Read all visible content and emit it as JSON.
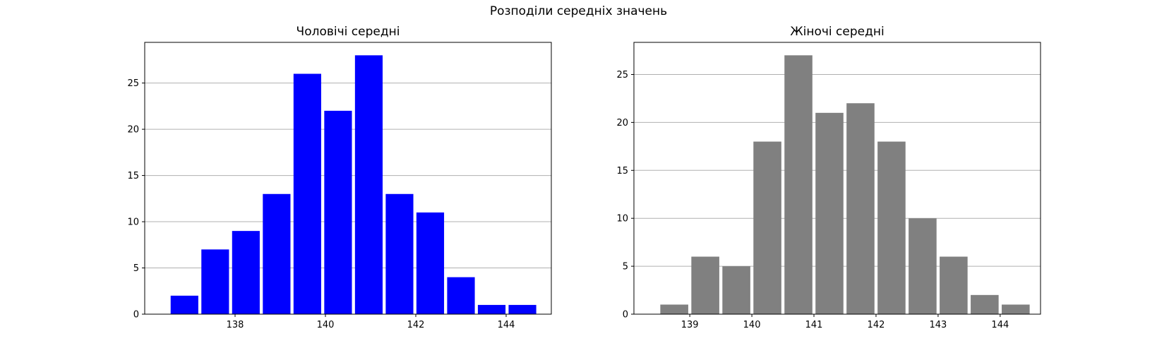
{
  "figure": {
    "title": "Розподіли середніх значень"
  },
  "chart_data": [
    {
      "type": "bar",
      "title": "Чоловічі середні",
      "color": "#0000ff",
      "bin_width": 0.68,
      "bin_centers": [
        136.88,
        137.56,
        138.24,
        138.92,
        139.6,
        140.28,
        140.96,
        141.64,
        142.32,
        143.0,
        143.68,
        144.36
      ],
      "values": [
        2,
        7,
        9,
        13,
        26,
        22,
        28,
        13,
        11,
        4,
        1,
        1
      ],
      "xlim": [
        136.0,
        145.0
      ],
      "ylim": [
        0,
        29.4
      ],
      "xticks": [
        138,
        140,
        142,
        144
      ],
      "yticks": [
        0,
        5,
        10,
        15,
        20,
        25
      ],
      "grid": "y"
    },
    {
      "type": "bar",
      "title": "Жіночі середні",
      "color": "#808080",
      "bin_width": 0.5,
      "bin_centers": [
        138.75,
        139.25,
        139.75,
        140.25,
        140.75,
        141.25,
        141.75,
        142.25,
        142.75,
        143.25,
        143.75,
        144.25
      ],
      "values": [
        1,
        6,
        5,
        18,
        27,
        21,
        22,
        18,
        10,
        6,
        2,
        1
      ],
      "xlim": [
        138.1,
        144.65
      ],
      "ylim": [
        0,
        28.35
      ],
      "xticks": [
        139,
        140,
        141,
        142,
        143,
        144
      ],
      "yticks": [
        0,
        5,
        10,
        15,
        20,
        25
      ],
      "grid": "y"
    }
  ]
}
